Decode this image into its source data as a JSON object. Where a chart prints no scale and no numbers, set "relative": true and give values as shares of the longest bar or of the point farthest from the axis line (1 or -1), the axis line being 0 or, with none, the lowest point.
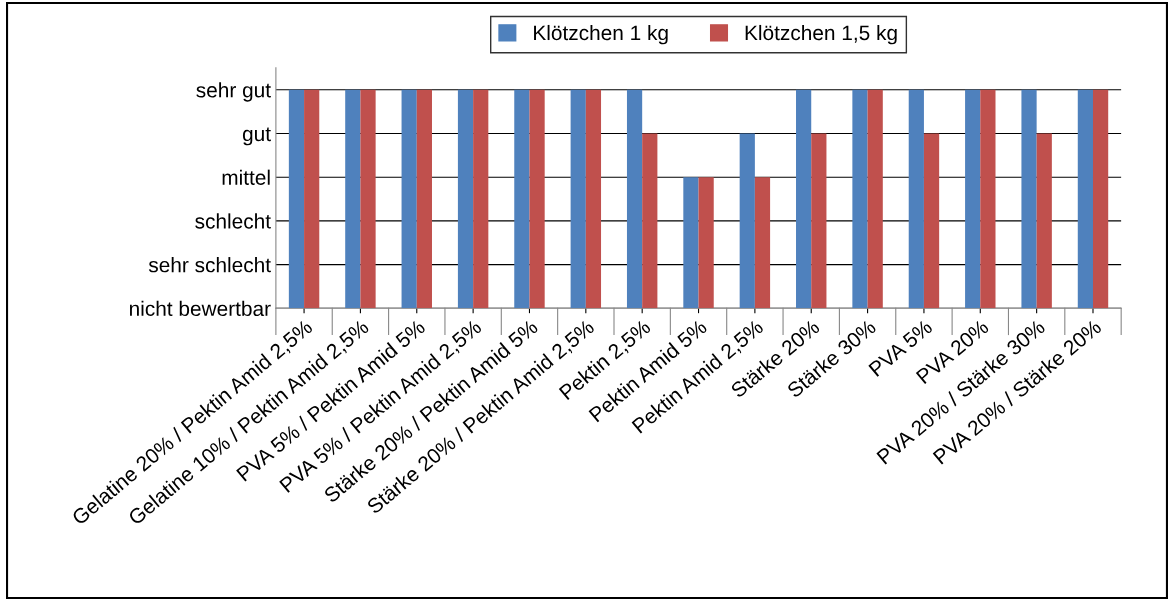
{
  "chart_data": {
    "type": "bar",
    "categories": [
      "Gelatine 20% / Pektin Amid 2,5%",
      "Gelatine 10% / Pektin Amid 2,5%",
      "PVA 5% / Pektin Amid 5%",
      "PVA 5% / Pektin Amid 2,5%",
      "Stärke 20% / Pektin Amid 5%",
      "Stärke 20% / Pektin Amid 2,5%",
      "Pektin 2,5%",
      "Pektin Amid 5%",
      "Pektin Amid 2,5%",
      "Stärke 20%",
      "Stärke 30%",
      "PVA 5%",
      "PVA 20%",
      "PVA 20% / Stärke 30%",
      "PVA 20% / Stärke 20%"
    ],
    "series": [
      {
        "name": "Klötzchen 1 kg",
        "color": "#4f81bd",
        "values": [
          1,
          1,
          1,
          1,
          1,
          1,
          1,
          0.6,
          0.8,
          1,
          1,
          1,
          1,
          1,
          1
        ]
      },
      {
        "name": "Klötzchen 1,5 kg",
        "color": "#c0504d",
        "values": [
          1,
          1,
          1,
          1,
          1,
          1,
          0.8,
          0.6,
          0.6,
          0.8,
          1,
          0.8,
          1,
          0.8,
          1
        ]
      }
    ],
    "relative": true,
    "annotations": [
      "nicht bewertbar",
      "sehr schlecht",
      "schlecht",
      "mittel",
      "gut",
      "sehr gut"
    ],
    "grid": "y",
    "legend": "top"
  }
}
